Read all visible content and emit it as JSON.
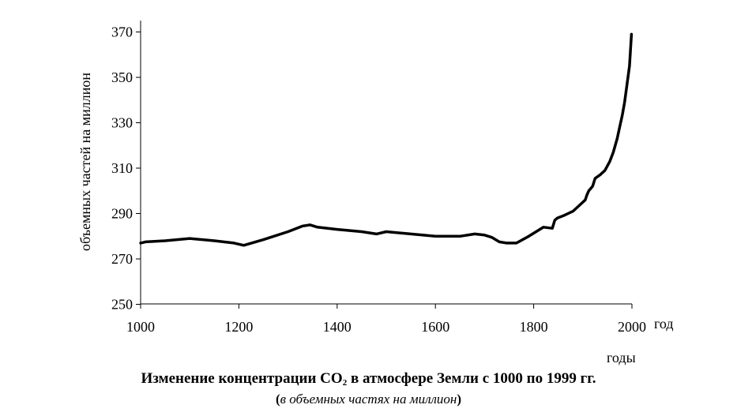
{
  "chart_data": {
    "type": "line",
    "title_parts": {
      "before": "Изменение концентрации CO",
      "subscript": "2",
      "after": " в атмосфере Земли с 1000 по 1999 гг."
    },
    "subtitle": "в объемных частях на миллион",
    "xlabel_right": "год",
    "xlabel_below": "годы",
    "ylabel": "объемных частей на миллион",
    "xlim": [
      1000,
      2000
    ],
    "ylim": [
      250,
      375
    ],
    "x_ticks": [
      1000,
      1200,
      1400,
      1600,
      1800,
      2000
    ],
    "y_ticks": [
      250,
      270,
      290,
      310,
      330,
      350,
      370
    ],
    "grid": false,
    "legend": "none",
    "line_color": "#000000",
    "series": [
      {
        "x": [
          1000,
          1010,
          1050,
          1100,
          1150,
          1190,
          1210,
          1250,
          1300,
          1330,
          1345,
          1360,
          1400,
          1450,
          1480,
          1500,
          1550,
          1600,
          1650,
          1680,
          1700,
          1715,
          1730,
          1745,
          1765,
          1790,
          1820,
          1838,
          1843,
          1848,
          1860,
          1880,
          1895,
          1905,
          1908,
          1912,
          1920,
          1925,
          1935,
          1945,
          1955,
          1962,
          1970,
          1975,
          1980,
          1985,
          1990,
          1995,
          1999
        ],
        "y": [
          277,
          277.5,
          278,
          279,
          278,
          277,
          276,
          278.5,
          282,
          284.5,
          285,
          284,
          283,
          282,
          281,
          282,
          281,
          280,
          280,
          281,
          280.5,
          279.5,
          277.5,
          277,
          277,
          280,
          284,
          283.5,
          287,
          288,
          289,
          291,
          294,
          296,
          298,
          300,
          302,
          305.5,
          307,
          309,
          313,
          317,
          323,
          328,
          333,
          339,
          347,
          355,
          369
        ]
      }
    ]
  }
}
